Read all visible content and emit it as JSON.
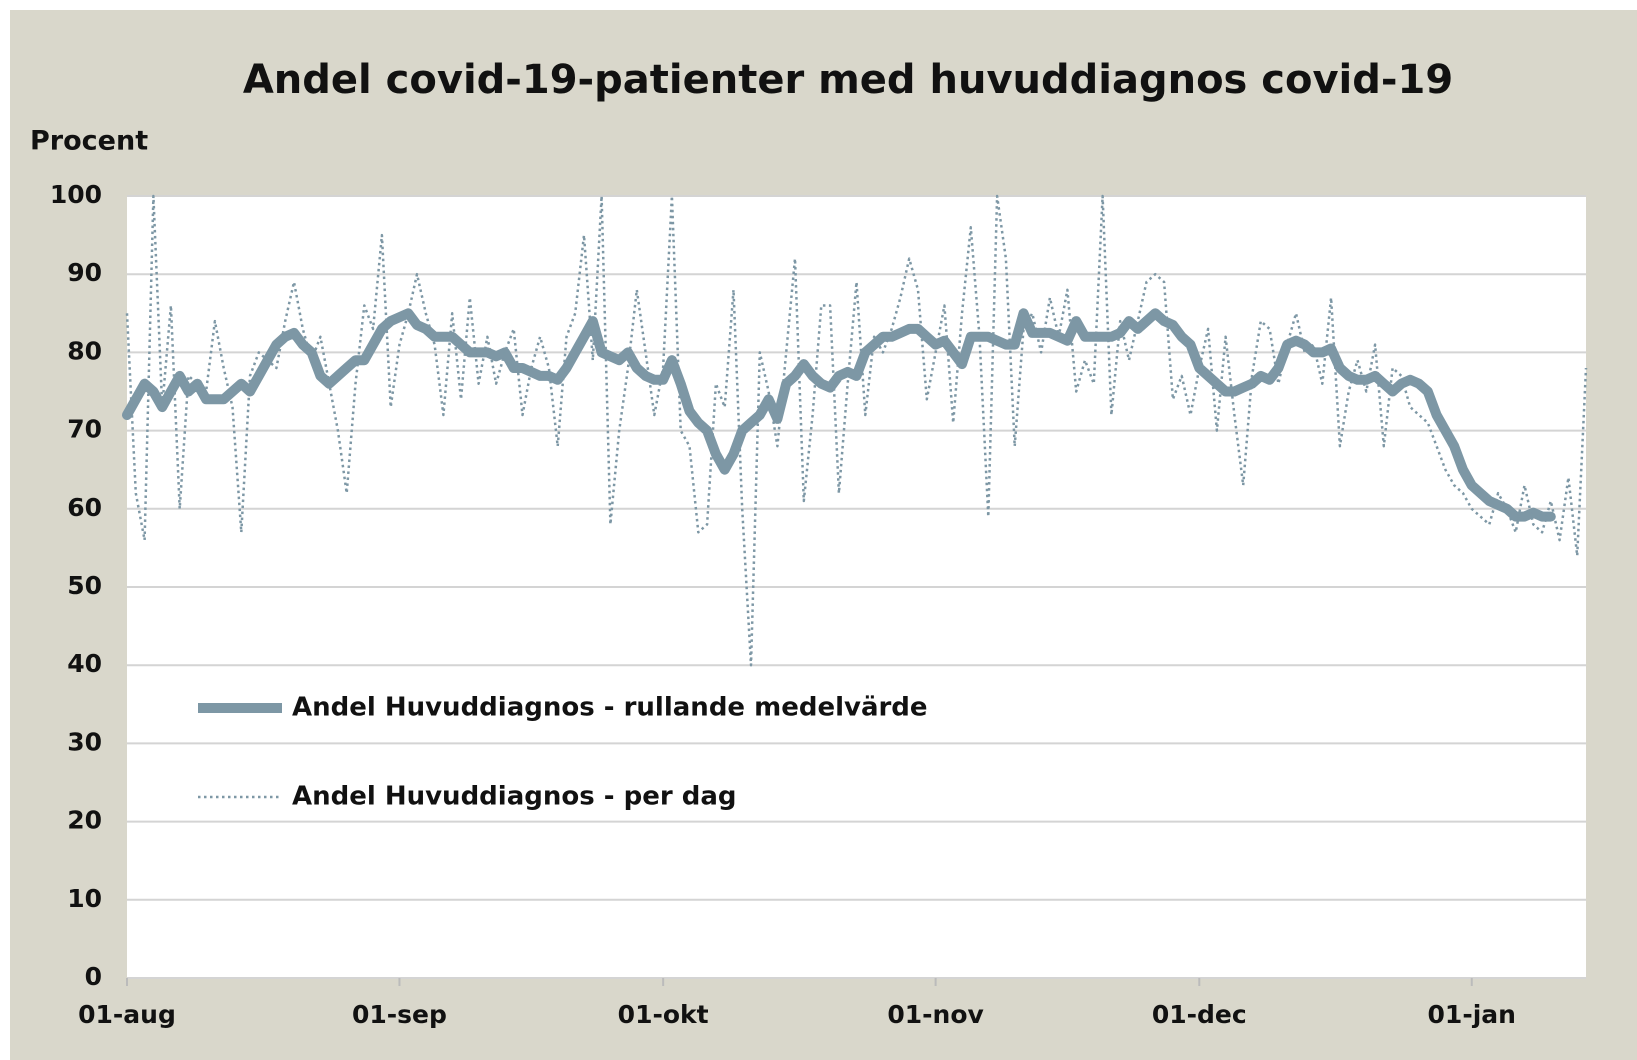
{
  "chart_data": {
    "type": "line",
    "title": "Andel covid-19-patienter med huvuddiagnos covid-19",
    "y_label": "Procent",
    "x": [
      "01-aug",
      "02-aug",
      "03-aug",
      "04-aug",
      "05-aug",
      "06-aug",
      "07-aug",
      "08-aug",
      "09-aug",
      "10-aug",
      "11-aug",
      "12-aug",
      "13-aug",
      "14-aug",
      "15-aug",
      "16-aug",
      "17-aug",
      "18-aug",
      "19-aug",
      "20-aug",
      "21-aug",
      "22-aug",
      "23-aug",
      "24-aug",
      "25-aug",
      "26-aug",
      "27-aug",
      "28-aug",
      "29-aug",
      "30-aug",
      "31-aug",
      "01-sep",
      "02-sep",
      "03-sep",
      "04-sep",
      "05-sep",
      "06-sep",
      "07-sep",
      "08-sep",
      "09-sep",
      "10-sep",
      "11-sep",
      "12-sep",
      "13-sep",
      "14-sep",
      "15-sep",
      "16-sep",
      "17-sep",
      "18-sep",
      "19-sep",
      "20-sep",
      "21-sep",
      "22-sep",
      "23-sep",
      "24-sep",
      "25-sep",
      "26-sep",
      "27-sep",
      "28-sep",
      "29-sep",
      "30-sep",
      "01-okt",
      "02-okt",
      "03-okt",
      "04-okt",
      "05-okt",
      "06-okt",
      "07-okt",
      "08-okt",
      "09-okt",
      "10-okt",
      "11-okt",
      "12-okt",
      "13-okt",
      "14-okt",
      "15-okt",
      "16-okt",
      "17-okt",
      "18-okt",
      "19-okt",
      "20-okt",
      "21-okt",
      "22-okt",
      "23-okt",
      "24-okt",
      "25-okt",
      "26-okt",
      "27-okt",
      "28-okt",
      "29-okt",
      "30-okt",
      "31-okt",
      "01-nov",
      "02-nov",
      "03-nov",
      "04-nov",
      "05-nov",
      "06-nov",
      "07-nov",
      "08-nov",
      "09-nov",
      "10-nov",
      "11-nov",
      "12-nov",
      "13-nov",
      "14-nov",
      "15-nov",
      "16-nov",
      "17-nov",
      "18-nov",
      "19-nov",
      "20-nov",
      "21-nov",
      "22-nov",
      "23-nov",
      "24-nov",
      "25-nov",
      "26-nov",
      "27-nov",
      "28-nov",
      "29-nov",
      "30-nov",
      "01-dec",
      "02-dec",
      "03-dec",
      "04-dec",
      "05-dec",
      "06-dec",
      "07-dec",
      "08-dec",
      "09-dec",
      "10-dec",
      "11-dec",
      "12-dec",
      "13-dec",
      "14-dec",
      "15-dec",
      "16-dec",
      "17-dec",
      "18-dec",
      "19-dec",
      "20-dec",
      "21-dec",
      "22-dec",
      "23-dec",
      "24-dec",
      "25-dec",
      "26-dec",
      "27-dec",
      "28-dec",
      "29-dec",
      "30-dec",
      "31-dec",
      "01-jan",
      "02-jan",
      "03-jan",
      "04-jan",
      "05-jan",
      "06-jan",
      "07-jan",
      "08-jan",
      "09-jan",
      "10-jan",
      "11-jan",
      "12-jan",
      "13-jan",
      "14-jan"
    ],
    "xticks": [
      "01-aug",
      "01-sep",
      "01-okt",
      "01-nov",
      "01-dec",
      "01-jan"
    ],
    "ylim": [
      0,
      100
    ],
    "yticks": [
      0,
      10,
      20,
      30,
      40,
      50,
      60,
      70,
      80,
      90,
      100
    ],
    "grid": true,
    "series": [
      {
        "name": "Andel Huvuddiagnos - rullande medelvärde",
        "color": "#7d97a5",
        "style": "solid",
        "values": [
          72,
          74,
          76,
          75,
          73,
          75,
          77,
          75,
          76,
          74,
          74,
          74,
          75,
          76,
          75,
          77,
          79,
          81,
          82,
          82.5,
          81,
          80,
          77,
          76,
          77,
          78,
          79,
          79,
          81,
          83,
          84,
          84.5,
          85,
          83.5,
          83,
          82,
          82,
          82,
          81,
          80,
          80,
          80,
          79.5,
          80,
          78,
          78,
          77.5,
          77,
          77,
          76.5,
          78,
          80,
          82,
          84,
          80,
          79.5,
          79,
          80,
          78,
          77,
          76.5,
          76.5,
          79,
          76,
          72.5,
          71,
          70,
          67,
          65,
          67,
          70,
          71,
          72,
          74,
          71.5,
          76,
          77,
          78.5,
          77,
          76,
          75.5,
          77,
          77.5,
          77,
          80,
          81,
          82,
          82,
          82.5,
          83,
          83,
          82,
          81,
          81.5,
          80,
          78.5,
          82,
          82,
          82,
          81.5,
          81,
          81,
          85,
          82.5,
          82.5,
          82.5,
          82,
          81.5,
          84,
          82,
          82,
          82,
          82,
          82.5,
          84,
          83,
          84,
          85,
          84,
          83.5,
          82,
          81,
          78,
          77,
          76,
          75,
          75,
          75.5,
          76,
          77,
          76.5,
          78,
          81,
          81.5,
          81,
          80,
          80,
          80.5,
          78,
          77,
          76.5,
          76.5,
          77,
          76,
          75,
          76,
          76.5,
          76,
          75,
          72,
          70,
          68,
          65,
          63,
          62,
          61,
          60.5,
          60,
          59,
          59,
          59.5,
          59,
          59,
          null,
          null,
          null,
          null
        ]
      },
      {
        "name": "Andel Huvuddiagnos - per dag",
        "color": "#7d97a5",
        "style": "dotted",
        "values": [
          85,
          62,
          56,
          100,
          73,
          86,
          60,
          77,
          76,
          75,
          84,
          78,
          73,
          57,
          77,
          80,
          79,
          78,
          84,
          89,
          83,
          79,
          82,
          76,
          70,
          62,
          76,
          86,
          83,
          95,
          73,
          81,
          85,
          90,
          85,
          81,
          72,
          85,
          74,
          87,
          76,
          82,
          76,
          80,
          83,
          72,
          78,
          82,
          78,
          68,
          82,
          85,
          95,
          79,
          100,
          58,
          70,
          78,
          88,
          80,
          72,
          78,
          100,
          70,
          68,
          57,
          58,
          76,
          73,
          88,
          60,
          40,
          80,
          75,
          68,
          80,
          92,
          61,
          72,
          86,
          86,
          62,
          76,
          89,
          72,
          82,
          80,
          83,
          87,
          92,
          88,
          74,
          80,
          86,
          71,
          85,
          96,
          82,
          59,
          100,
          92,
          68,
          83,
          85,
          80,
          87,
          82,
          88,
          75,
          79,
          76,
          100,
          72,
          84,
          79,
          84,
          89,
          90,
          89,
          74,
          77,
          72,
          78,
          83,
          70,
          82,
          72,
          63,
          77,
          84,
          83,
          76,
          81,
          85,
          80,
          81,
          76,
          87,
          68,
          75,
          79,
          75,
          81,
          68,
          78,
          77,
          73,
          72,
          71,
          68,
          65,
          63,
          62,
          60,
          59,
          58,
          62,
          60,
          57,
          63,
          58,
          57,
          61,
          56,
          64,
          54,
          78
        ]
      }
    ]
  }
}
